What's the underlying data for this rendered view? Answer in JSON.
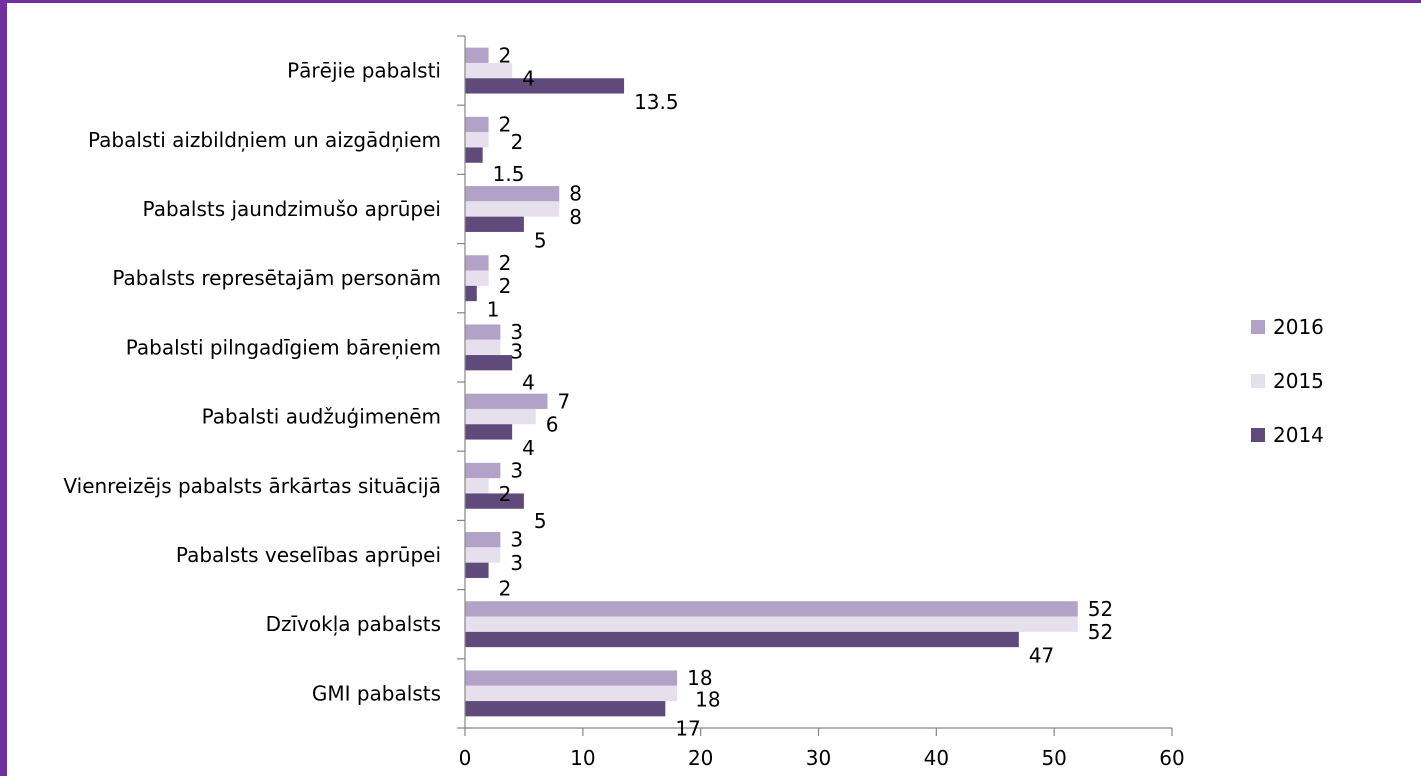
{
  "chart_data": {
    "type": "bar",
    "orientation": "horizontal",
    "categories": [
      "Pārējie pabalsti",
      "Pabalsti aizbildņiem un aizgādņiem",
      "Pabalsts jaundzimušo aprūpei",
      "Pabalsts represētajām personām",
      "Pabalsti pilngadīgiem bāreņiem",
      "Pabalsti audžuģimenēm",
      "Vienreizējs pabalsts ārkārtas situācijā",
      "Pabalsts veselības aprūpei",
      "Dzīvokļa pabalsts",
      "GMI pabalsts"
    ],
    "series": [
      {
        "name": "2016",
        "color": "#b2a2c7",
        "values": [
          2,
          2,
          8,
          2,
          3,
          7,
          3,
          3,
          52,
          18
        ]
      },
      {
        "name": "2015",
        "color": "#e5e0ec",
        "values": [
          4,
          2,
          8,
          2,
          3,
          6,
          2,
          3,
          52,
          18
        ]
      },
      {
        "name": "2014",
        "color": "#604a7b",
        "values": [
          13.5,
          1.5,
          5,
          1,
          4,
          4,
          5,
          2,
          47,
          17
        ]
      }
    ],
    "xlim": [
      0,
      60
    ],
    "xticks": [
      0,
      10,
      20,
      30,
      40,
      50,
      60
    ],
    "title": "",
    "xlabel": "",
    "ylabel": "",
    "legend_position": "right",
    "grid": false,
    "frame_color": "#7030a0"
  }
}
